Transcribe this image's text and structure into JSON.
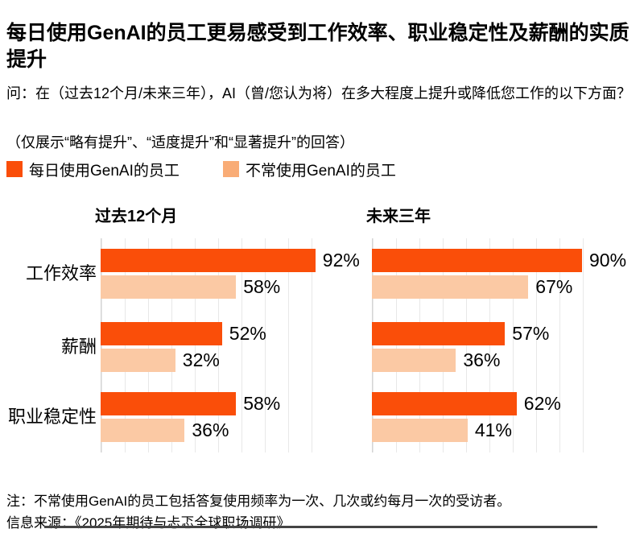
{
  "title": "每日使用GenAI的员工更易感受到工作效率、职业稳定性及薪酬的实质提升",
  "question": "问：在（过去12个月/未来三年），AI（曾/您认为将）在多大程度上提升或降低您工作的以下方面？",
  "filter_note": "（仅展示“略有提升”、“适度提升”和“显著提升”的回答）",
  "legend": {
    "daily": {
      "label": "每日使用GenAI的员工",
      "color": "#FA4E09"
    },
    "infrequent": {
      "label": "不常使用GenAI的员工",
      "color": "#F9AC76"
    }
  },
  "colors": {
    "bar_daily": "#FA4E09",
    "bar_infrequent": "#FBC9A4",
    "gridline": "#e8e8e8"
  },
  "chart_data": {
    "type": "bar",
    "orientation": "horizontal",
    "categories": [
      "工作效率",
      "薪酬",
      "职业稳定性"
    ],
    "unit": "%",
    "xlim": [
      0,
      100
    ],
    "grid": true,
    "gridline_interval": 10,
    "legend_position": "top",
    "charts": [
      {
        "title": "过去12个月",
        "series": [
          {
            "name": "每日使用GenAI的员工",
            "color": "#FA4E09",
            "values": [
              92,
              52,
              58
            ],
            "labels": [
              "92%",
              "52%",
              "58%"
            ]
          },
          {
            "name": "不常使用GenAI的员工",
            "color": "#FBC9A4",
            "values": [
              58,
              32,
              36
            ],
            "labels": [
              "58%",
              "32%",
              "36%"
            ]
          }
        ]
      },
      {
        "title": "未来三年",
        "series": [
          {
            "name": "每日使用GenAI的员工",
            "color": "#FA4E09",
            "values": [
              90,
              57,
              62
            ],
            "labels": [
              "90%",
              "57%",
              "62%"
            ]
          },
          {
            "name": "不常使用GenAI的员工",
            "color": "#FBC9A4",
            "values": [
              67,
              36,
              41
            ],
            "labels": [
              "67%",
              "36%",
              "41%"
            ]
          }
        ]
      }
    ]
  },
  "footnote": "注：不常使用GenAI的员工包括答复使用频率为一次、几次或约每月一次的受访者。",
  "source": "信息来源：《2025年期待与忐忑全球职场调研》"
}
